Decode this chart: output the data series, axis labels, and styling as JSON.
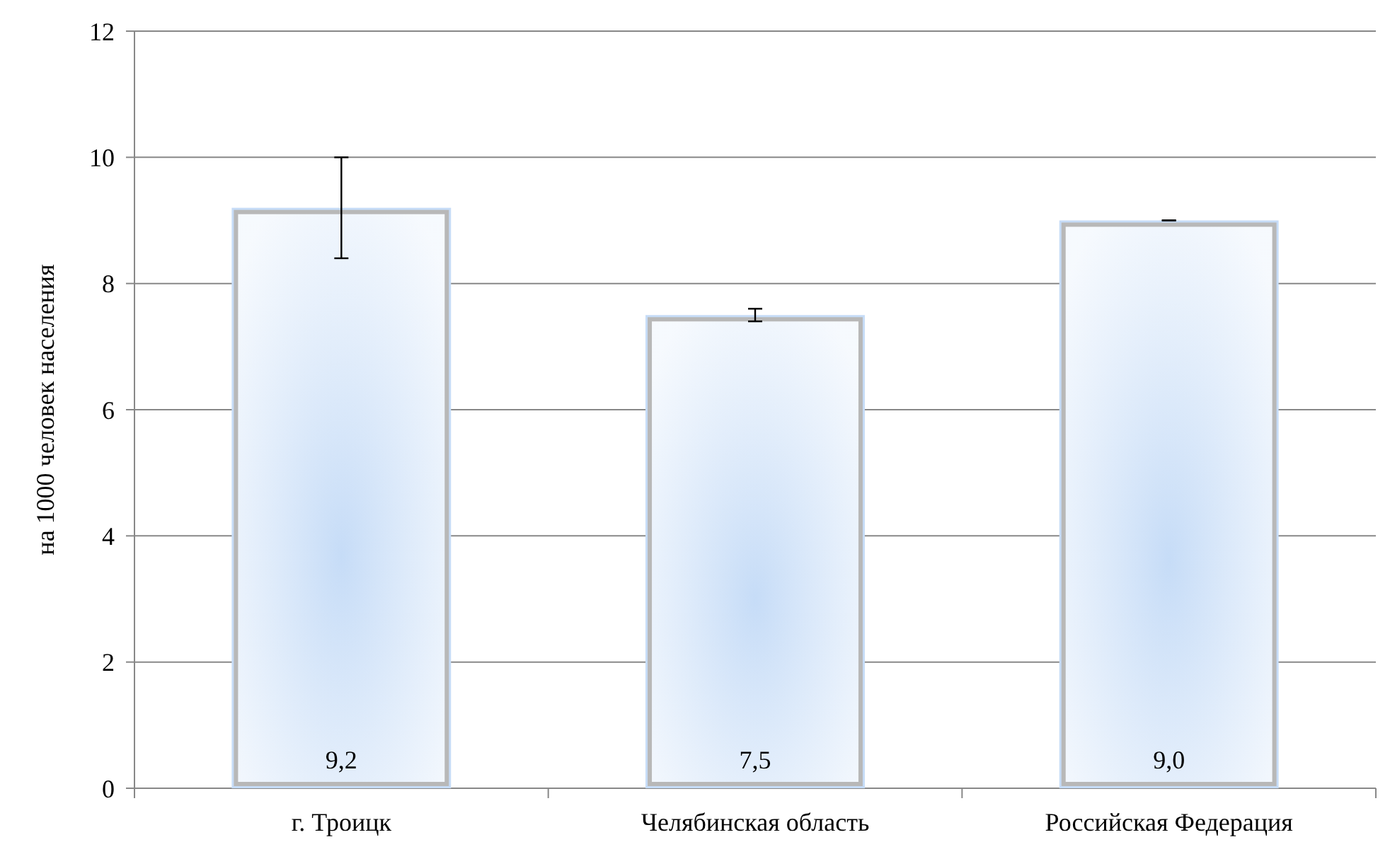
{
  "chart_data": {
    "type": "bar",
    "ylabel": "на 1000 человек населения",
    "categories": [
      "г. Троицк",
      "Челябинская область",
      "Российская Федерация"
    ],
    "values": [
      9.2,
      7.5,
      9.0
    ],
    "value_labels": [
      "9,2",
      "7,5",
      "9,0"
    ],
    "errors": [
      [
        8.4,
        10
      ],
      [
        7.4,
        7.6
      ],
      0
    ],
    "color": "#c6dcf7",
    "ylim": [
      0,
      12
    ],
    "yticks": [
      0,
      2,
      4,
      6,
      8,
      10,
      12
    ],
    "grid": "y"
  }
}
